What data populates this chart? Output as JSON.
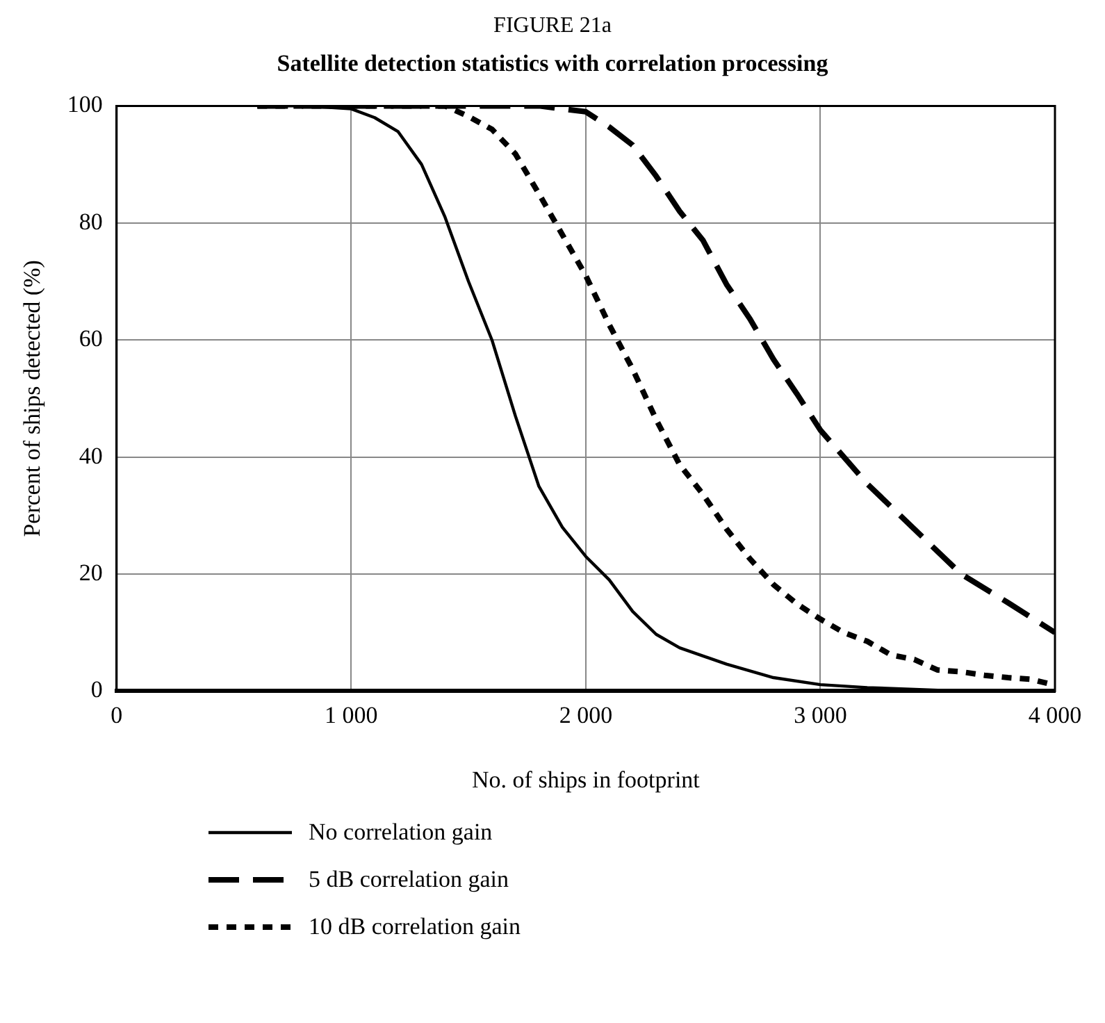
{
  "chart_data": {
    "type": "line",
    "title": "FIGURE 21a",
    "subtitle": "Satellite detection statistics with correlation processing",
    "xlabel": "No. of ships in footprint",
    "ylabel": "Percent of ships detected (%)",
    "xlim": [
      0,
      4000
    ],
    "xticks": [
      0,
      {
        "value": 1000,
        "label": "1 000"
      },
      {
        "value": 2000,
        "label": "2 000"
      },
      {
        "value": 3000,
        "label": "3 000"
      },
      {
        "value": 4000,
        "label": "4 000"
      }
    ],
    "ylim": [
      0,
      100
    ],
    "yticks": [
      0,
      20,
      40,
      60,
      80,
      100
    ],
    "grid": true,
    "legend": "bottom",
    "marker": "none",
    "series": [
      {
        "name": "No correlation gain",
        "color": "#000000",
        "line_style": "solid",
        "x": [
          600,
          800,
          1000,
          1100,
          1200,
          1300,
          1400,
          1500,
          1600,
          1700,
          1800,
          1900,
          2000,
          2100,
          2200,
          2300,
          2400,
          2600,
          2800,
          3000,
          3200,
          3600,
          4000
        ],
        "values": [
          100,
          100,
          99.5,
          98,
          95.6,
          90,
          81,
          70,
          60,
          47,
          35,
          28,
          23,
          19,
          13.6,
          9.7,
          7.4,
          4.6,
          2.3,
          1.1,
          0.6,
          0,
          0
        ]
      },
      {
        "name": "5 dB correlation gain",
        "color": "#000000",
        "line_style": "dashed",
        "x": [
          600,
          1000,
          1500,
          1800,
          1900,
          2000,
          2100,
          2200,
          2300,
          2400,
          2500,
          2600,
          2700,
          2800,
          2900,
          3000,
          3200,
          3400,
          3600,
          3800,
          4000
        ],
        "values": [
          100,
          100,
          100,
          100,
          99.5,
          99,
          96.4,
          93.3,
          88,
          82,
          77,
          69.5,
          63.6,
          56.7,
          50.8,
          44.6,
          35.4,
          27.7,
          20,
          15.1,
          10
        ]
      },
      {
        "name": "10 dB correlation gain",
        "color": "#000000",
        "line_style": "dotted",
        "x": [
          600,
          1000,
          1400,
          1500,
          1600,
          1700,
          1800,
          1900,
          2000,
          2100,
          2200,
          2300,
          2400,
          2500,
          2600,
          2700,
          2800,
          2900,
          3000,
          3100,
          3200,
          3300,
          3400,
          3500,
          3600,
          3700,
          3800,
          3900,
          4000
        ],
        "values": [
          100,
          100,
          100,
          98.2,
          96,
          91.8,
          85,
          78,
          71,
          62.6,
          55,
          46.4,
          38.7,
          33.6,
          27.7,
          22.6,
          18.2,
          14.9,
          12.3,
          10,
          8.5,
          6.2,
          5.4,
          3.6,
          3.3,
          2.7,
          2.3,
          2,
          1
        ]
      }
    ]
  }
}
